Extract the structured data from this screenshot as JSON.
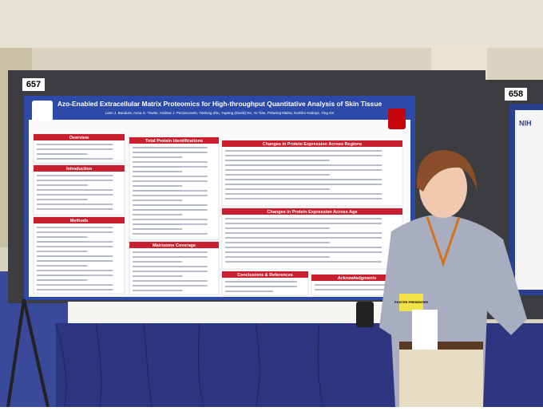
{
  "board_numbers": [
    "657",
    "658"
  ],
  "poster": {
    "title": "Azo-Enabled Extracellular Matrix Proteomics for High-throughput Quantitative Analysis of Skin Tissue",
    "authors": "Liam J. Bandura, Anna G. Towler, Andrew J. Perciaccante, Yanlong Zhu, Yupeng (David) He, Yu Tian, Pritiwiraj Maitra, Kumiko Kadoya, Ying Ge",
    "sections": [
      "Overview",
      "Introduction",
      "Methods",
      "Total Protein Identifications",
      "Matrisome Coverage",
      "Changes in Protein Expression Across Regions",
      "Changes in Protein Expression Across Age",
      "Conclusions & References",
      "Acknowledgments"
    ]
  },
  "badge": "POSTER PRESENTER",
  "neighbor_poster_label": "NIH"
}
